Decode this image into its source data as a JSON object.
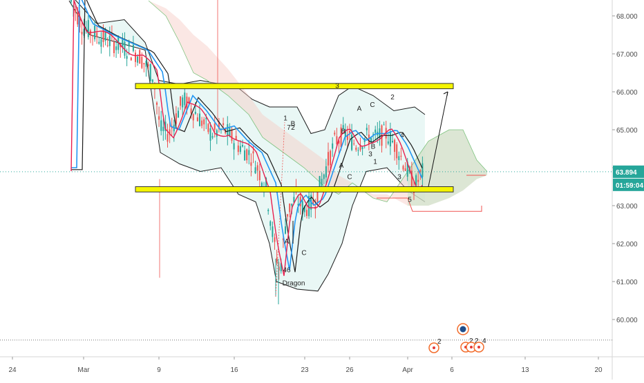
{
  "chart_data": {
    "type": "candlestick",
    "y_axis": {
      "labels": [
        "68.000",
        "67.000",
        "66.000",
        "65.000",
        "64.000",
        "63.000",
        "62.000",
        "61.000",
        "60.000"
      ],
      "values": [
        68,
        67,
        66,
        65,
        64,
        63,
        62,
        61,
        60
      ],
      "range": [
        59.2,
        68.4
      ]
    },
    "x_axis": {
      "labels": [
        "24",
        "Mar",
        "9",
        "16",
        "23",
        "26",
        "Apr",
        "6",
        "13",
        "20"
      ]
    },
    "last_price": "63.894",
    "countdown": "01:59:04",
    "colors": {
      "bull": "#26a69a",
      "bear": "#ef5350",
      "price_tag": "#26a69a",
      "channel_fill": "#cfeee8",
      "cloud_bear": "#f6c9c4",
      "cloud_bull": "#c8e6c9",
      "zone": "#f5f500",
      "ma_red": "#e91e4e",
      "ma_blue": "#2196f3",
      "kijun_black": "#1a1a1a"
    },
    "zones": [
      {
        "name": "upper-zone",
        "y_low": 66.08,
        "y_high": 66.22
      },
      {
        "name": "lower-zone",
        "y_low": 63.36,
        "y_high": 63.5
      }
    ],
    "horizontal_lines": {
      "last_price_level": 63.894,
      "low_level": 59.46
    },
    "annotations": [
      "1",
      "7",
      "2",
      "B",
      "A",
      "C",
      "46",
      "Dragon",
      "3",
      "B",
      "A",
      "C",
      "2",
      "A",
      "B",
      "C",
      "1",
      "4",
      "3",
      "5",
      "3"
    ],
    "event_badges": [
      "2",
      "2",
      "2",
      "4"
    ]
  }
}
